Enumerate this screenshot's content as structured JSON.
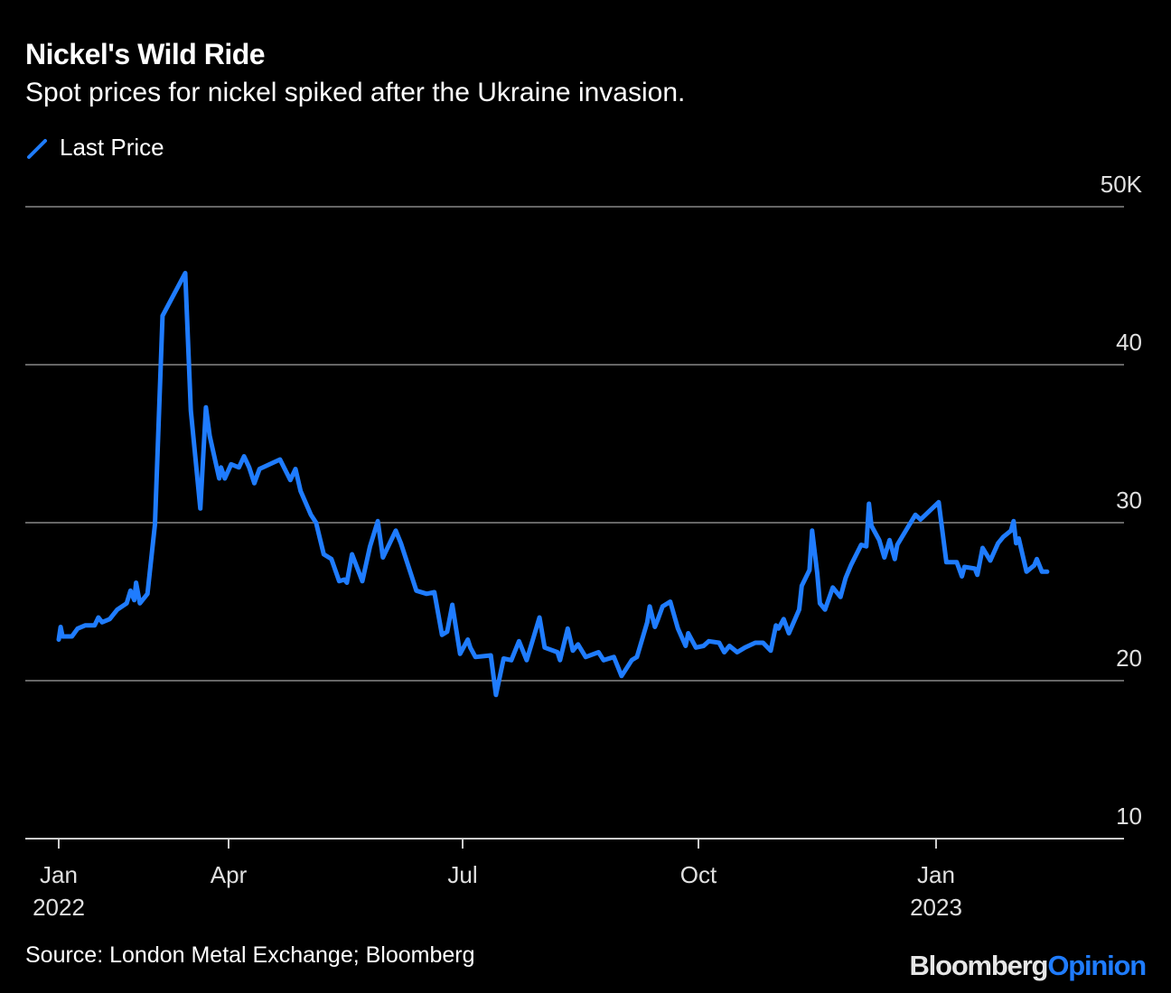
{
  "title": "Nickel's Wild Ride",
  "subtitle": "Spot prices for nickel spiked after the Ukraine invasion.",
  "source": "Source: London Metal Exchange; Bloomberg",
  "logo": {
    "part1": "Bloomberg",
    "part2": "Opinion"
  },
  "colors": {
    "line": "#1f7cff",
    "grid": "#666666",
    "background": "#000000"
  },
  "chart_data": {
    "type": "line",
    "title": "Nickel's Wild Ride",
    "subtitle": "Spot prices for nickel spiked after the Ukraine invasion.",
    "legend": {
      "placement": "top-left",
      "entries": [
        "Last Price"
      ]
    },
    "grid": true,
    "ylim": [
      10,
      50
    ],
    "y_ticks": [
      {
        "value": 50,
        "label": "50K"
      },
      {
        "value": 40,
        "label": "40"
      },
      {
        "value": 30,
        "label": "30"
      },
      {
        "value": 20,
        "label": "20"
      },
      {
        "value": 10,
        "label": "10"
      }
    ],
    "x_ticks": [
      {
        "date": "2022-01-01",
        "label": "Jan",
        "year": "2022"
      },
      {
        "date": "2022-04-01",
        "label": "Apr",
        "year": ""
      },
      {
        "date": "2022-07-01",
        "label": "Jul",
        "year": ""
      },
      {
        "date": "2022-10-01",
        "label": "Oct",
        "year": ""
      },
      {
        "date": "2023-01-01",
        "label": "Jan",
        "year": "2023"
      }
    ],
    "series": [
      {
        "name": "Last Price",
        "points": [
          [
            "2022-01-01",
            22.6
          ],
          [
            "2022-01-02",
            23.4
          ],
          [
            "2022-01-03",
            22.8
          ],
          [
            "2022-01-08",
            22.8
          ],
          [
            "2022-01-11",
            23.3
          ],
          [
            "2022-01-15",
            23.5
          ],
          [
            "2022-01-20",
            23.5
          ],
          [
            "2022-01-22",
            24.0
          ],
          [
            "2022-01-24",
            23.7
          ],
          [
            "2022-01-28",
            23.9
          ],
          [
            "2022-02-01",
            24.5
          ],
          [
            "2022-02-06",
            24.9
          ],
          [
            "2022-02-08",
            25.7
          ],
          [
            "2022-02-10",
            25.1
          ],
          [
            "2022-02-11",
            26.2
          ],
          [
            "2022-02-13",
            24.9
          ],
          [
            "2022-02-17",
            25.5
          ],
          [
            "2022-02-21",
            29.9
          ],
          [
            "2022-02-25",
            43.1
          ],
          [
            "2022-03-09",
            45.8
          ],
          [
            "2022-03-12",
            37.1
          ],
          [
            "2022-03-17",
            30.9
          ],
          [
            "2022-03-20",
            37.3
          ],
          [
            "2022-03-22",
            35.5
          ],
          [
            "2022-03-27",
            32.8
          ],
          [
            "2022-03-28",
            33.5
          ],
          [
            "2022-03-30",
            32.8
          ],
          [
            "2022-04-02",
            33.7
          ],
          [
            "2022-04-05",
            33.5
          ],
          [
            "2022-04-07",
            34.2
          ],
          [
            "2022-04-09",
            33.5
          ],
          [
            "2022-04-11",
            32.5
          ],
          [
            "2022-04-13",
            33.4
          ],
          [
            "2022-04-21",
            34.0
          ],
          [
            "2022-04-25",
            32.7
          ],
          [
            "2022-04-27",
            33.4
          ],
          [
            "2022-04-29",
            32.0
          ],
          [
            "2022-05-03",
            30.5
          ],
          [
            "2022-05-05",
            30.0
          ],
          [
            "2022-05-08",
            28.0
          ],
          [
            "2022-05-11",
            27.7
          ],
          [
            "2022-05-14",
            26.3
          ],
          [
            "2022-05-16",
            26.4
          ],
          [
            "2022-05-17",
            26.2
          ],
          [
            "2022-05-19",
            28.0
          ],
          [
            "2022-05-23",
            26.3
          ],
          [
            "2022-05-26",
            28.5
          ],
          [
            "2022-05-29",
            30.1
          ],
          [
            "2022-05-31",
            27.8
          ],
          [
            "2022-06-05",
            29.5
          ],
          [
            "2022-06-07",
            28.7
          ],
          [
            "2022-06-13",
            25.7
          ],
          [
            "2022-06-17",
            25.5
          ],
          [
            "2022-06-20",
            25.6
          ],
          [
            "2022-06-23",
            22.9
          ],
          [
            "2022-06-25",
            23.1
          ],
          [
            "2022-06-27",
            24.8
          ],
          [
            "2022-06-30",
            21.7
          ],
          [
            "2022-07-03",
            22.6
          ],
          [
            "2022-07-04",
            22.1
          ],
          [
            "2022-07-06",
            21.5
          ],
          [
            "2022-07-12",
            21.6
          ],
          [
            "2022-07-14",
            19.1
          ],
          [
            "2022-07-17",
            21.4
          ],
          [
            "2022-07-20",
            21.3
          ],
          [
            "2022-07-23",
            22.5
          ],
          [
            "2022-07-26",
            21.3
          ],
          [
            "2022-07-31",
            24.0
          ],
          [
            "2022-08-02",
            22.1
          ],
          [
            "2022-08-07",
            21.8
          ],
          [
            "2022-08-08",
            21.3
          ],
          [
            "2022-08-11",
            23.3
          ],
          [
            "2022-08-13",
            21.9
          ],
          [
            "2022-08-15",
            22.3
          ],
          [
            "2022-08-18",
            21.5
          ],
          [
            "2022-08-23",
            21.8
          ],
          [
            "2022-08-25",
            21.3
          ],
          [
            "2022-08-29",
            21.5
          ],
          [
            "2022-09-01",
            20.3
          ],
          [
            "2022-09-05",
            21.3
          ],
          [
            "2022-09-07",
            21.5
          ],
          [
            "2022-09-11",
            23.7
          ],
          [
            "2022-09-12",
            24.7
          ],
          [
            "2022-09-14",
            23.4
          ],
          [
            "2022-09-15",
            23.8
          ],
          [
            "2022-09-17",
            24.7
          ],
          [
            "2022-09-20",
            25.0
          ],
          [
            "2022-09-23",
            23.3
          ],
          [
            "2022-09-26",
            22.2
          ],
          [
            "2022-09-27",
            23.0
          ],
          [
            "2022-09-30",
            22.1
          ],
          [
            "2022-10-03",
            22.2
          ],
          [
            "2022-10-05",
            22.5
          ],
          [
            "2022-10-09",
            22.4
          ],
          [
            "2022-10-11",
            21.8
          ],
          [
            "2022-10-13",
            22.2
          ],
          [
            "2022-10-16",
            21.8
          ],
          [
            "2022-10-19",
            22.1
          ],
          [
            "2022-10-23",
            22.4
          ],
          [
            "2022-10-26",
            22.4
          ],
          [
            "2022-10-29",
            21.9
          ],
          [
            "2022-10-31",
            23.5
          ],
          [
            "2022-11-01",
            23.3
          ],
          [
            "2022-11-03",
            23.9
          ],
          [
            "2022-11-05",
            23.0
          ],
          [
            "2022-11-09",
            24.5
          ],
          [
            "2022-11-10",
            26.0
          ],
          [
            "2022-11-13",
            27.0
          ],
          [
            "2022-11-14",
            29.5
          ],
          [
            "2022-11-16",
            26.8
          ],
          [
            "2022-11-17",
            24.9
          ],
          [
            "2022-11-19",
            24.5
          ],
          [
            "2022-11-22",
            25.9
          ],
          [
            "2022-11-25",
            25.3
          ],
          [
            "2022-11-27",
            26.5
          ],
          [
            "2022-11-29",
            27.3
          ],
          [
            "2022-12-03",
            28.6
          ],
          [
            "2022-12-05",
            28.5
          ],
          [
            "2022-12-06",
            31.2
          ],
          [
            "2022-12-07",
            29.8
          ],
          [
            "2022-12-10",
            28.9
          ],
          [
            "2022-12-12",
            27.8
          ],
          [
            "2022-12-14",
            28.9
          ],
          [
            "2022-12-16",
            27.7
          ],
          [
            "2022-12-17",
            28.6
          ],
          [
            "2022-12-21",
            29.7
          ],
          [
            "2022-12-24",
            30.5
          ],
          [
            "2022-12-26",
            30.2
          ],
          [
            "2023-01-02",
            31.3
          ],
          [
            "2023-01-05",
            27.5
          ],
          [
            "2023-01-09",
            27.5
          ],
          [
            "2023-01-11",
            26.6
          ],
          [
            "2023-01-12",
            27.2
          ],
          [
            "2023-01-16",
            27.1
          ],
          [
            "2023-01-17",
            26.7
          ],
          [
            "2023-01-19",
            28.4
          ],
          [
            "2023-01-22",
            27.6
          ],
          [
            "2023-01-25",
            28.7
          ],
          [
            "2023-01-27",
            29.1
          ],
          [
            "2023-01-30",
            29.5
          ],
          [
            "2023-01-31",
            30.1
          ],
          [
            "2023-02-01",
            28.7
          ],
          [
            "2023-02-02",
            29.0
          ],
          [
            "2023-02-05",
            26.9
          ],
          [
            "2023-02-08",
            27.3
          ],
          [
            "2023-02-09",
            27.7
          ],
          [
            "2023-02-11",
            26.9
          ],
          [
            "2023-02-13",
            26.9
          ]
        ]
      }
    ]
  }
}
